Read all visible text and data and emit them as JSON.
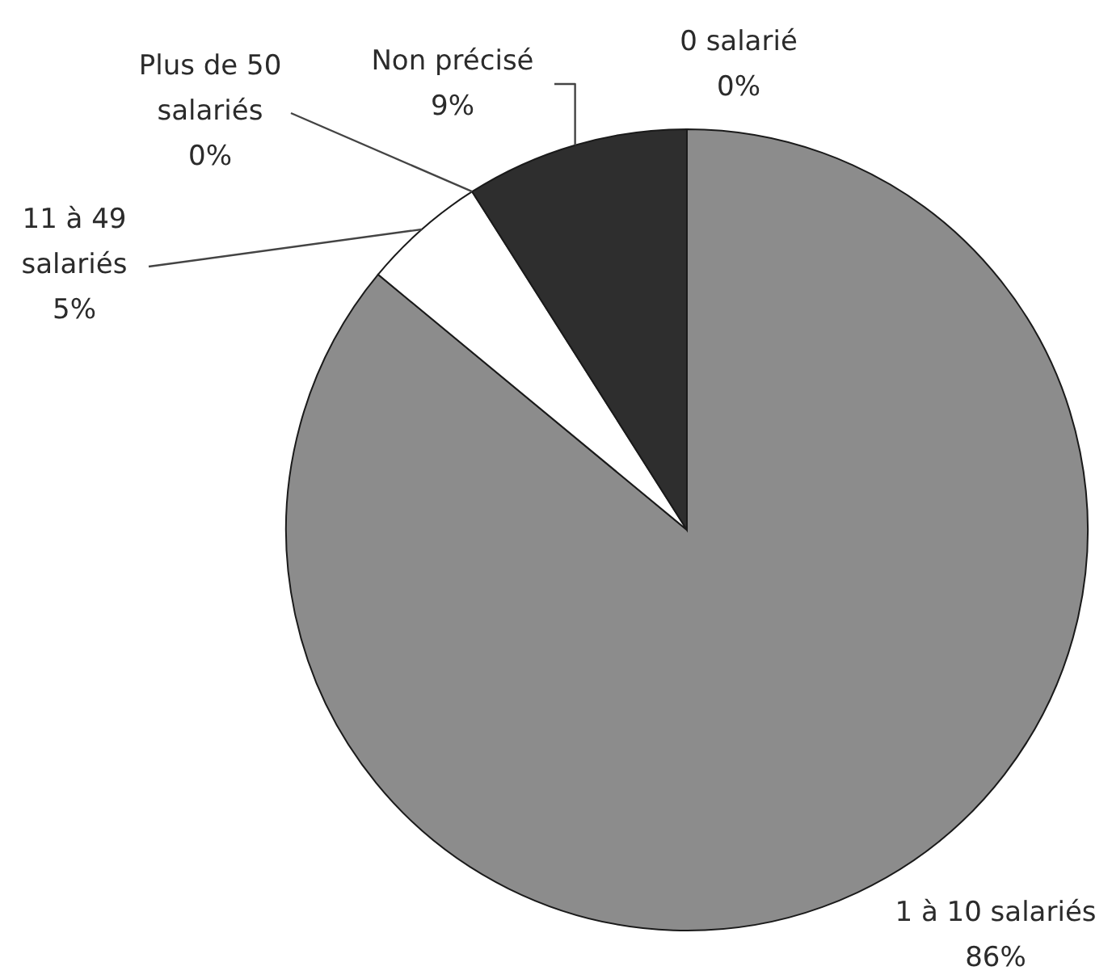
{
  "chart_data": {
    "type": "pie",
    "categories": [
      "0 salarié",
      "1 à 10 salariés",
      "11 à 49 salariés",
      "Plus de 50 salariés",
      "Non précisé"
    ],
    "values": [
      0,
      86,
      5,
      0,
      9
    ],
    "colors": [
      "#ffffff",
      "#8c8c8c",
      "#ffffff",
      "#ffffff",
      "#2e2e2e"
    ],
    "value_labels": [
      "0%",
      "86%",
      "5%",
      "0%",
      "9%"
    ]
  }
}
